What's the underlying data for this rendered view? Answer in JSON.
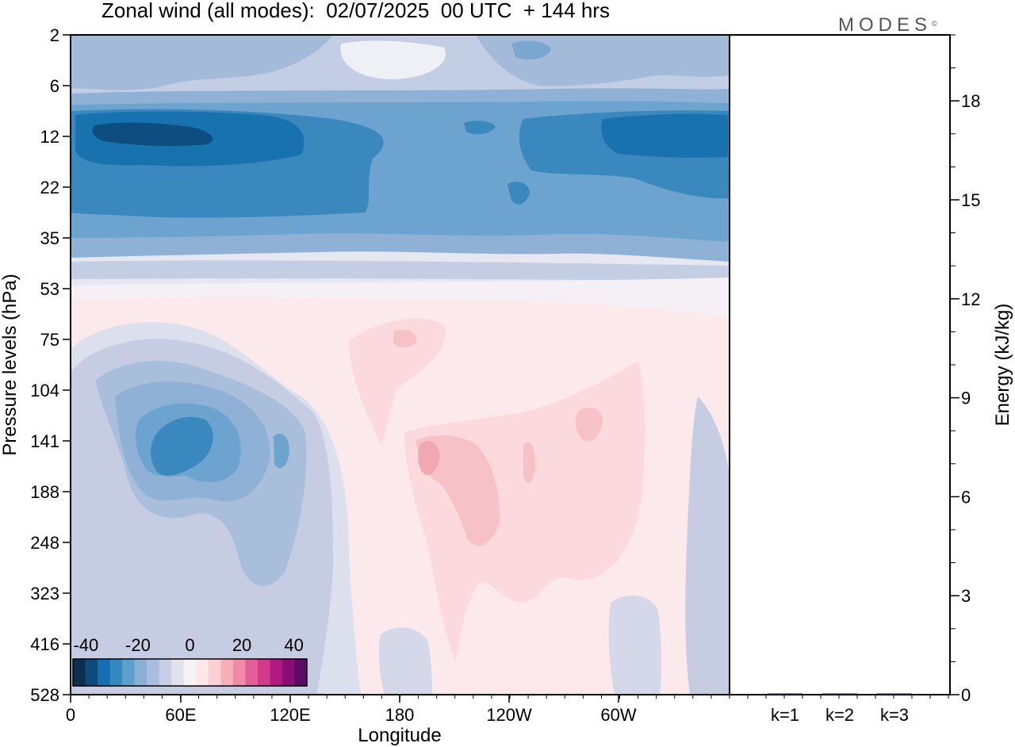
{
  "header": {
    "title": "Zonal wind (all modes):  02/07/2025  00 UTC  + 144 hrs",
    "brand": "MODES",
    "brand_mark": "©"
  },
  "chart_data": [
    {
      "type": "heatmap",
      "title": "Zonal wind (all modes):  02/07/2025  00 UTC  + 144 hrs",
      "xlabel": "Longitude",
      "ylabel": "Pressure levels (hPa)",
      "x_ticks": [
        "0",
        "60E",
        "120E",
        "180",
        "120W",
        "60W"
      ],
      "y_ticks": [
        "2",
        "6",
        "12",
        "22",
        "35",
        "53",
        "75",
        "104",
        "141",
        "188",
        "248",
        "323",
        "416",
        "528"
      ],
      "xlim": [
        0,
        360
      ],
      "y_axis": "pressure levels, top 2 hPa to bottom 528 hPa",
      "colorbar": {
        "ticks": [
          "-40",
          "-20",
          "0",
          "20",
          "40"
        ],
        "range": [
          -45,
          45
        ],
        "colors": [
          "#0d2f4f",
          "#0e4a7c",
          "#1470b0",
          "#3688c0",
          "#5da0cc",
          "#8ab0d4",
          "#a9bedd",
          "#c8cee4",
          "#e2e2ee",
          "#f7f2f6",
          "#fde6e8",
          "#fbcfd4",
          "#f7b0bb",
          "#f08aa6",
          "#e45f98",
          "#d23a8c",
          "#b01a82",
          "#8a0d76",
          "#5b0a66"
        ]
      },
      "features": [
        {
          "name": "upper stratospheric easterly band",
          "levels": "6-35 hPa",
          "lon": "0-360",
          "value": -30
        },
        {
          "name": "easterly core",
          "levels": "104-188 hPa",
          "lon": "40E-110E",
          "value": -32
        },
        {
          "name": "westerly region",
          "levels": "75-323 hPa",
          "lon": "160E-70W",
          "value": 12
        }
      ]
    },
    {
      "type": "bar",
      "categories": [
        "k=1",
        "k=2",
        "k=3"
      ],
      "values": [
        0.03,
        0.02,
        0.015
      ],
      "ylabel": "Energy (kJ/kg)",
      "ylim": [
        0,
        20
      ],
      "y_ticks": [
        "0",
        "3",
        "6",
        "9",
        "12",
        "15",
        "18"
      ],
      "bar_color": "#1f1a4f"
    }
  ]
}
